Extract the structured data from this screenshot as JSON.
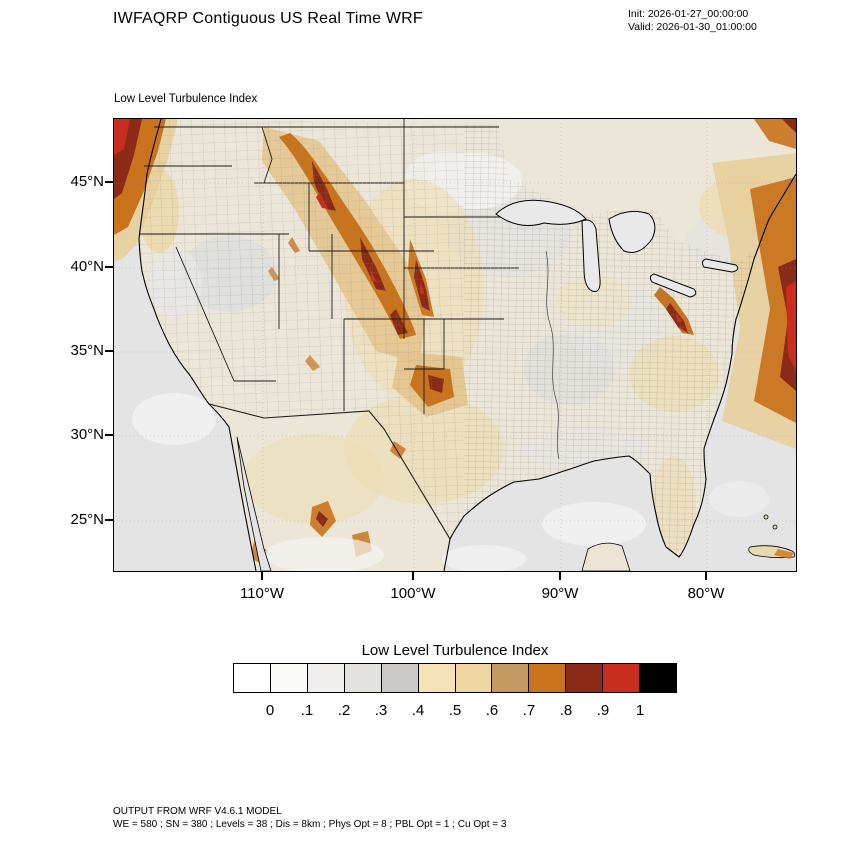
{
  "header": {
    "title": "IWFAQRP Contiguous US Real Time WRF",
    "init": "Init: 2026-01-27_00:00:00",
    "valid": "Valid: 2026-01-30_01:00:00"
  },
  "map_panel": {
    "field_label": "Low Level Turbulence Index",
    "lat_ticks": [
      "45°N",
      "40°N",
      "35°N",
      "30°N",
      "25°N"
    ],
    "lon_ticks": [
      "110°W",
      "100°W",
      "90°W",
      "80°W"
    ],
    "colors": {
      "ocean": "#e4e4e4",
      "land": "#ece6d8",
      "high_turbulence_orange": "#c9741d",
      "severe_dark_red": "#8b2a17",
      "severe_red": "#c92d1d"
    }
  },
  "colorbar": {
    "title": "Low Level Turbulence Index",
    "tick_labels": [
      "0",
      ".1",
      ".2",
      ".3",
      ".4",
      ".5",
      ".6",
      ".7",
      ".8",
      ".9",
      "1"
    ],
    "colors": [
      "#ffffff",
      "#fbfbf9",
      "#f1f0ee",
      "#e3e2df",
      "#cbcac6",
      "#f5e2b6",
      "#eed5a2",
      "#c59a62",
      "#c9741d",
      "#8b2a17",
      "#c92d1d",
      "#000000"
    ]
  },
  "footer": {
    "line1": "OUTPUT FROM WRF V4.6.1 MODEL",
    "line2": "WE = 580 ; SN = 380 ; Levels = 38 ; Dis = 8km ; Phys Opt = 8 ; PBL Opt = 1 ; Cu Opt = 3"
  }
}
